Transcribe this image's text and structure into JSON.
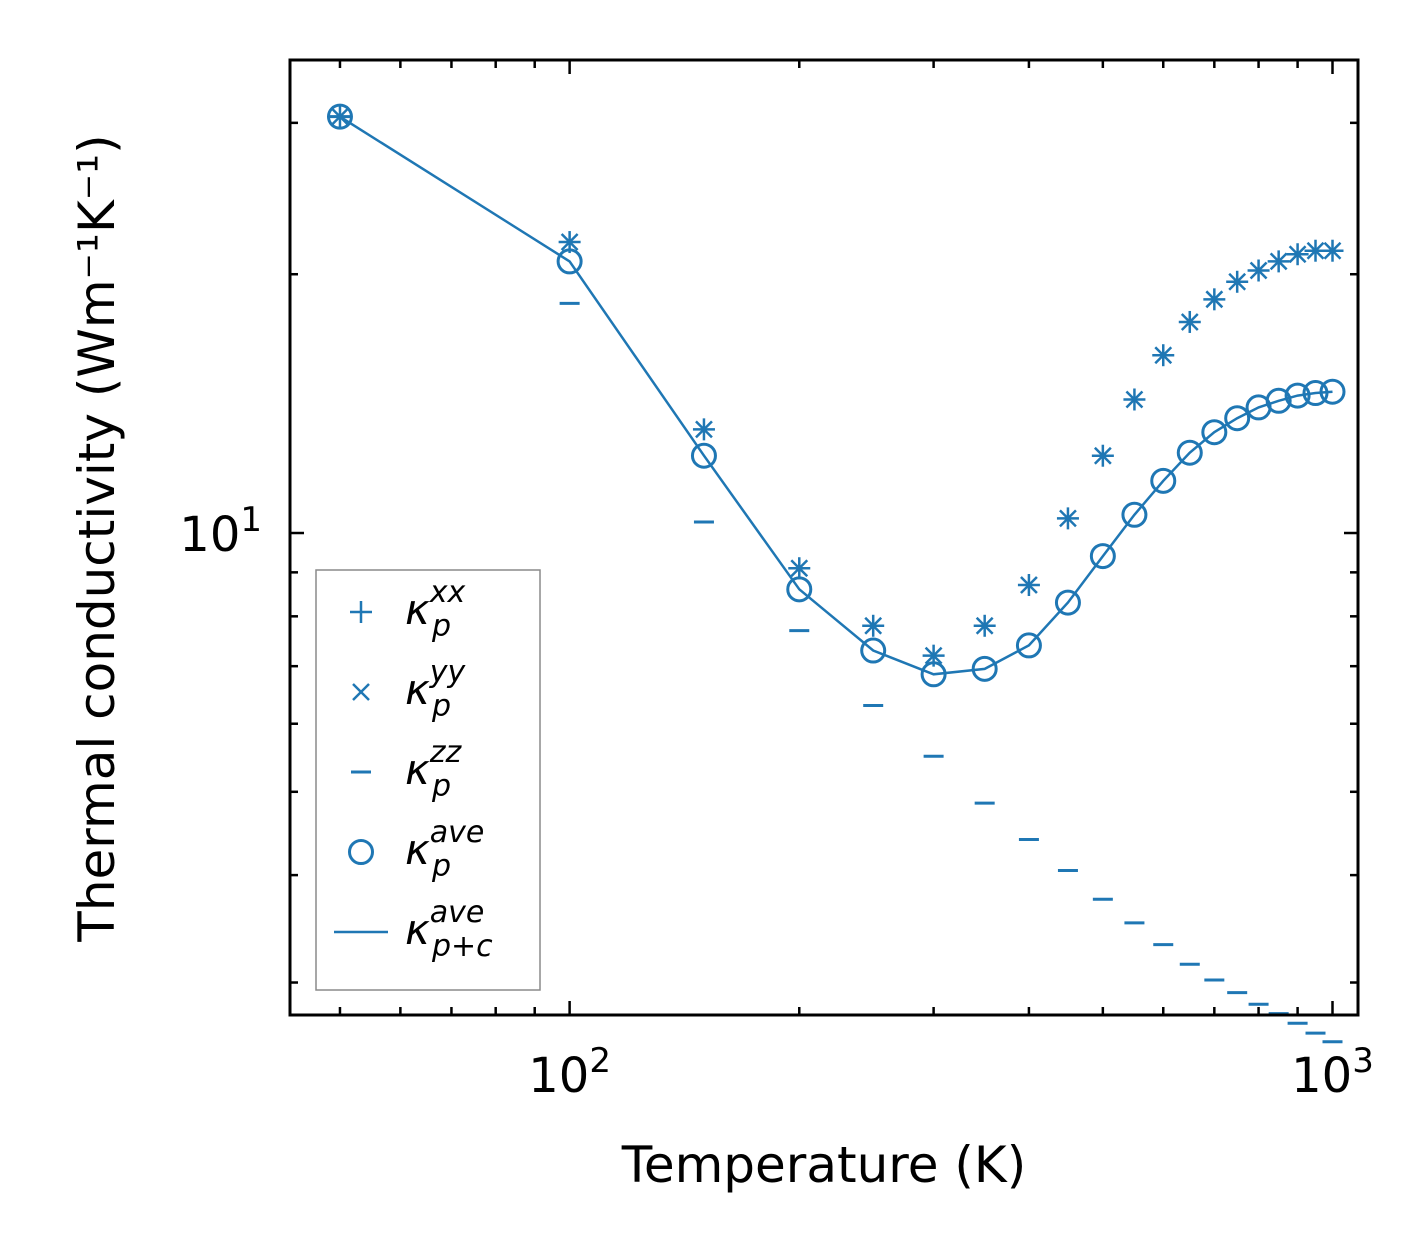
{
  "chart_data": {
    "type": "scatter",
    "title": "",
    "xlabel": "Temperature (K)",
    "ylabel": "Thermal conductivity (Wm⁻¹K⁻¹)",
    "xscale": "log",
    "yscale": "log",
    "xlim": [
      43,
      1080
    ],
    "ylim": [
      2.75,
      35.5
    ],
    "x_tick_labels": [
      {
        "base": "10",
        "exp": "2",
        "value": 100
      },
      {
        "base": "10",
        "exp": "3",
        "value": 1000
      }
    ],
    "y_tick_labels": [
      {
        "base": "10",
        "exp": "1",
        "value": 10
      }
    ],
    "legend_position": "lower-left",
    "color": "#1f77b4",
    "x": [
      50,
      100,
      150,
      200,
      250,
      300,
      350,
      400,
      450,
      500,
      550,
      600,
      650,
      700,
      750,
      800,
      850,
      900,
      950,
      1000
    ],
    "series": [
      {
        "name": "xx",
        "label_base": "κ",
        "label_sub": "p",
        "label_sup": "xx",
        "marker": "plus",
        "values": [
          30.5,
          21.8,
          13.2,
          9.1,
          7.8,
          7.2,
          7.8,
          8.7,
          10.4,
          12.3,
          14.3,
          16.1,
          17.6,
          18.7,
          19.6,
          20.2,
          20.7,
          21.1,
          21.3,
          21.3
        ]
      },
      {
        "name": "yy",
        "label_base": "κ",
        "label_sub": "p",
        "label_sup": "yy",
        "marker": "x",
        "values": [
          30.5,
          21.8,
          13.2,
          9.1,
          7.8,
          7.2,
          7.8,
          8.7,
          10.4,
          12.3,
          14.3,
          16.1,
          17.6,
          18.7,
          19.6,
          20.2,
          20.7,
          21.1,
          21.3,
          21.3
        ]
      },
      {
        "name": "zz",
        "label_base": "κ",
        "label_sub": "p",
        "label_sup": "zz",
        "marker": "hline",
        "values": [
          30.5,
          18.5,
          10.3,
          7.7,
          6.3,
          5.5,
          4.85,
          4.4,
          4.05,
          3.75,
          3.52,
          3.32,
          3.15,
          3.02,
          2.92,
          2.83,
          2.76,
          2.69,
          2.62,
          2.56
        ]
      },
      {
        "name": "ave",
        "label_base": "κ",
        "label_sub": "p",
        "label_sup": "ave",
        "marker": "circle",
        "values": [
          30.5,
          20.7,
          12.3,
          8.6,
          7.3,
          6.85,
          6.95,
          7.4,
          8.3,
          9.4,
          10.5,
          11.5,
          12.4,
          13.1,
          13.6,
          14.0,
          14.25,
          14.45,
          14.55,
          14.6
        ]
      },
      {
        "name": "ave_pc",
        "label_base": "κ",
        "label_sub": "p+c",
        "label_sup": "ave",
        "marker": "line",
        "values": [
          30.5,
          20.7,
          12.3,
          8.6,
          7.3,
          6.85,
          6.95,
          7.4,
          8.3,
          9.4,
          10.5,
          11.5,
          12.4,
          13.1,
          13.6,
          14.0,
          14.25,
          14.45,
          14.55,
          14.6
        ]
      }
    ]
  }
}
